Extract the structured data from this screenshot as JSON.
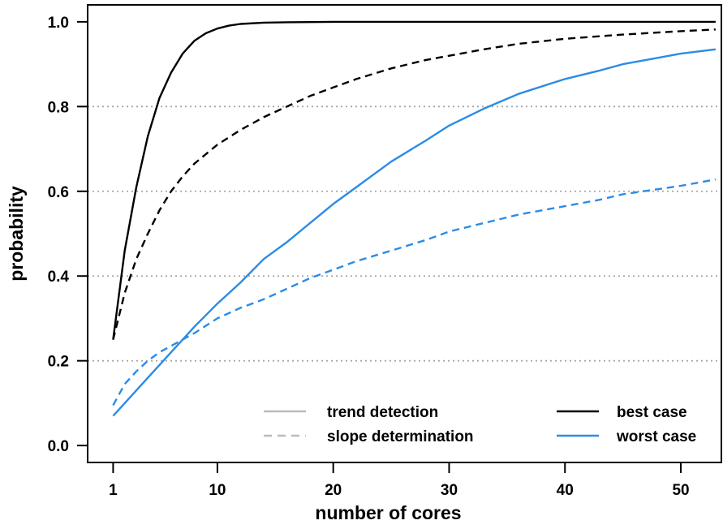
{
  "chart_data": {
    "type": "line",
    "xlabel": "number of cores",
    "ylabel": "probability",
    "xlim": [
      -1.2,
      53.5
    ],
    "ylim": [
      -0.04,
      1.04
    ],
    "x_ticks": [
      1,
      10,
      20,
      30,
      40,
      50
    ],
    "y_ticks": [
      0.0,
      0.2,
      0.4,
      0.6,
      0.8,
      1.0
    ],
    "y_tick_labels": [
      "0.0",
      "0.2",
      "0.4",
      "0.6",
      "0.8",
      "1.0"
    ],
    "grid": "horizontal dotted lines at 0.2, 0.4, 0.6, 0.8",
    "legend": {
      "placement": "bottom-right",
      "entries": [
        {
          "label": "trend detection",
          "style": "solid",
          "color": "#bbbbbb"
        },
        {
          "label": "slope determination",
          "style": "dashed",
          "color": "#bbbbbb"
        },
        {
          "label": "best case",
          "style": "solid",
          "color": "#000000"
        },
        {
          "label": "worst case",
          "style": "solid",
          "color": "#2b8ce6"
        }
      ]
    },
    "colors": {
      "best_case": "#000000",
      "worst_case": "#2b8ce6",
      "legend_grey": "#bbbbbb",
      "grid": "#a6a6a6"
    },
    "series": [
      {
        "key": "best-trend",
        "style": "solid",
        "color": "#000000",
        "x": [
          1,
          2,
          3,
          4,
          5,
          6,
          7,
          8,
          9,
          10,
          11,
          12,
          14,
          16,
          20,
          30,
          40,
          50,
          53
        ],
        "y": [
          0.25,
          0.46,
          0.61,
          0.73,
          0.82,
          0.88,
          0.925,
          0.955,
          0.973,
          0.984,
          0.991,
          0.995,
          0.998,
          0.999,
          1.0,
          1.0,
          1.0,
          1.0,
          1.0
        ]
      },
      {
        "key": "best-slope",
        "style": "dashed",
        "color": "#000000",
        "x": [
          1,
          2,
          3,
          4,
          5,
          6,
          7,
          8,
          10,
          12,
          14,
          16,
          18,
          20,
          22,
          25,
          28,
          30,
          33,
          36,
          40,
          45,
          50,
          53
        ],
        "y": [
          0.25,
          0.36,
          0.44,
          0.5,
          0.555,
          0.6,
          0.635,
          0.665,
          0.71,
          0.745,
          0.775,
          0.8,
          0.825,
          0.845,
          0.865,
          0.89,
          0.91,
          0.92,
          0.935,
          0.948,
          0.96,
          0.97,
          0.978,
          0.982
        ]
      },
      {
        "key": "worst-trend",
        "style": "solid",
        "color": "#2b8ce6",
        "x": [
          1,
          2,
          3,
          4,
          5,
          6,
          8,
          10,
          12,
          14,
          16,
          18,
          20,
          22,
          25,
          28,
          30,
          33,
          36,
          40,
          43,
          45,
          48,
          50,
          53
        ],
        "y": [
          0.07,
          0.1,
          0.13,
          0.16,
          0.19,
          0.22,
          0.28,
          0.335,
          0.385,
          0.44,
          0.48,
          0.525,
          0.57,
          0.61,
          0.67,
          0.72,
          0.755,
          0.795,
          0.83,
          0.865,
          0.885,
          0.9,
          0.915,
          0.925,
          0.935
        ]
      },
      {
        "key": "worst-slope",
        "style": "dashed",
        "color": "#2b8ce6",
        "x": [
          1,
          2,
          3,
          4,
          5,
          6,
          8,
          10,
          12,
          14,
          16,
          18,
          20,
          22,
          25,
          28,
          30,
          33,
          36,
          40,
          43,
          45,
          48,
          50,
          53
        ],
        "y": [
          0.095,
          0.145,
          0.175,
          0.2,
          0.22,
          0.235,
          0.265,
          0.3,
          0.325,
          0.345,
          0.37,
          0.395,
          0.415,
          0.435,
          0.46,
          0.485,
          0.505,
          0.525,
          0.545,
          0.565,
          0.58,
          0.593,
          0.605,
          0.613,
          0.628
        ]
      }
    ]
  }
}
